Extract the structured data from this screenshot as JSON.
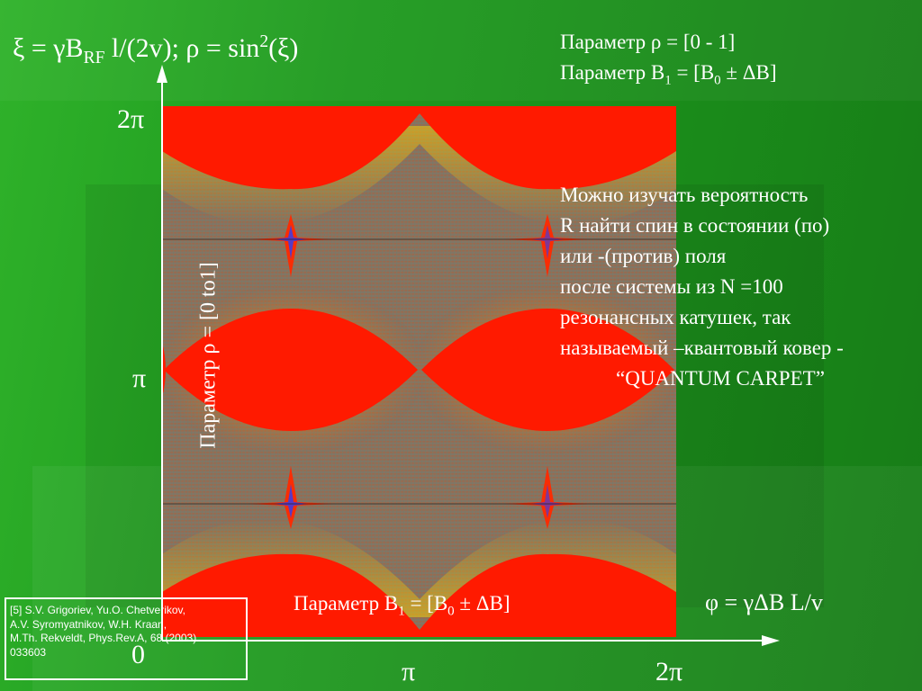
{
  "formula": {
    "xi": "ξ = γB",
    "rf": "RF",
    "rest": " l/(2v); ρ = sin",
    "sq": "2",
    "end": "(ξ)"
  },
  "params_top": {
    "line1": "Параметр ρ = [0 - 1]",
    "line2_a": "Параметр  B",
    "line2_sub1": "1",
    "line2_b": " = [B",
    "line2_sub2": "0",
    "line2_c": " ± ΔB]"
  },
  "description": {
    "lines": [
      "Можно изучать вероятность",
      "R найти спин в состоянии (по)",
      "или -(против) поля",
      "после системы из N =100",
      "резонансных катушек, так",
      "называемый –квантовый ковер -"
    ],
    "last_line": "“QUANTUM CARPET”"
  },
  "y_ticks": {
    "top": "2π",
    "mid": "π",
    "zero": "0"
  },
  "x_ticks": {
    "mid": "π",
    "end": "2π"
  },
  "rho_axis_label": "Параметр ρ = [0 to1]",
  "b1_bottom": {
    "a": "Параметр B",
    "sub1": "1",
    "b": " = [B",
    "sub2": "0",
    "c": " ± ΔB]"
  },
  "phi_label": "φ = γΔB L/v",
  "reference": {
    "lines": [
      "[5] S.V. Grigoriev, Yu.O. Chetverikov,",
      "A.V. Syromyatnikov, W.H. Kraan,",
      "M.Th. Rekveldt, Phys.Rev.A, 68 (2003)",
      "033603"
    ]
  },
  "colors": {
    "background": "#1e8c1e",
    "carpet_red": "#ff1a00",
    "carpet_gray": "#8a7a6a",
    "text": "#ffffff"
  }
}
